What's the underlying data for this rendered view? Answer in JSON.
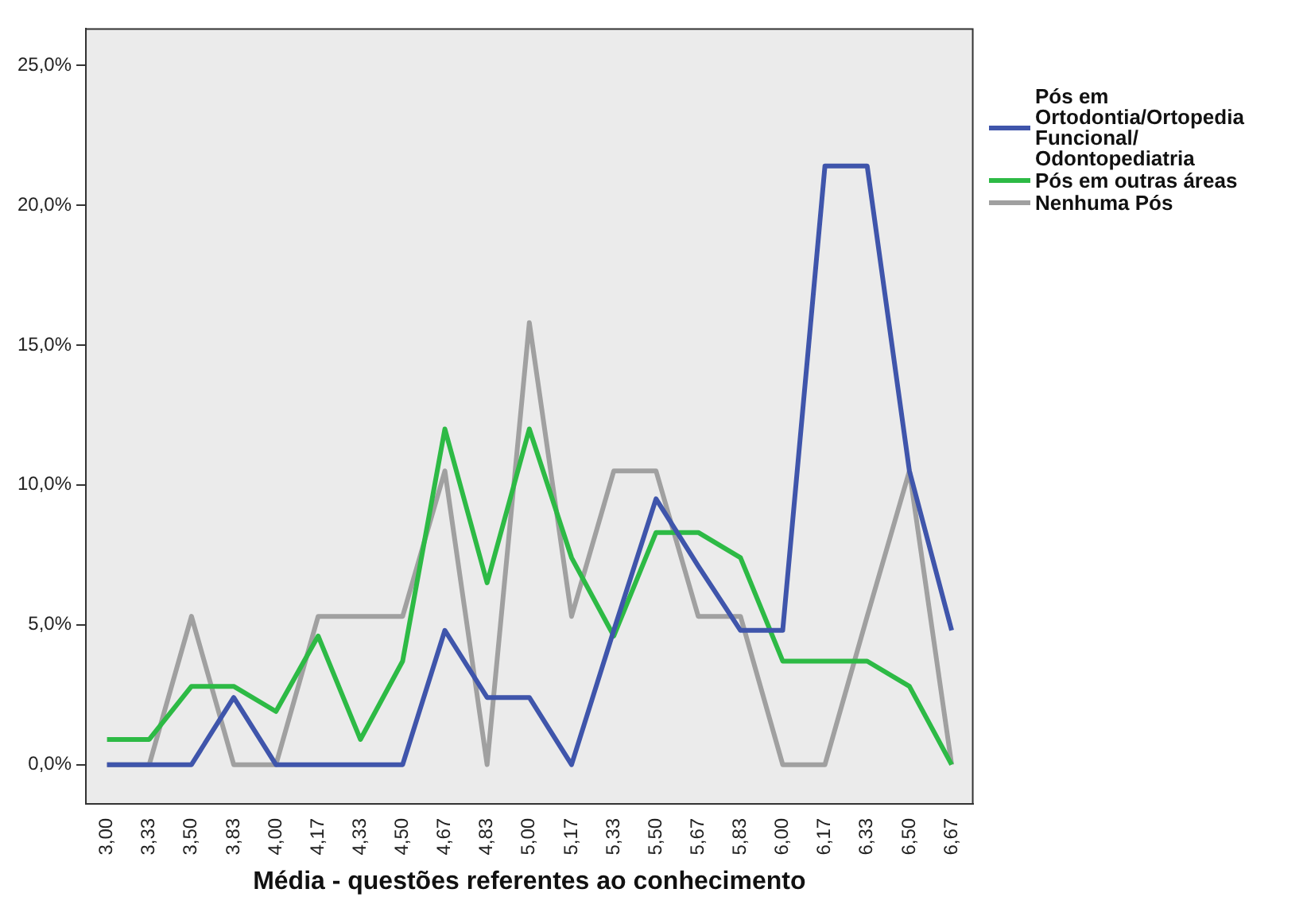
{
  "chart_data": {
    "type": "line",
    "xlabel": "Média - questões referentes ao conhecimento",
    "categories": [
      "3,00",
      "3,33",
      "3,50",
      "3,83",
      "4,00",
      "4,17",
      "4,33",
      "4,50",
      "4,67",
      "4,83",
      "5,00",
      "5,17",
      "5,33",
      "5,50",
      "5,67",
      "5,83",
      "6,00",
      "6,17",
      "6,33",
      "6,50",
      "6,67"
    ],
    "series": [
      {
        "name": "Pós em Ortodontia/Ortopedia Funcional/ Odontopediatria",
        "color": "#3f55ab",
        "values": [
          0,
          0,
          0,
          2.4,
          0,
          0,
          0,
          0,
          4.8,
          2.4,
          2.4,
          0,
          4.8,
          9.5,
          7.1,
          4.8,
          4.8,
          21.4,
          21.4,
          10.5,
          4.8
        ]
      },
      {
        "name": "Pós em outras áreas",
        "color": "#2dba45",
        "values": [
          0.9,
          0.9,
          2.8,
          2.8,
          1.9,
          4.6,
          0.9,
          3.7,
          12.0,
          6.5,
          12.0,
          7.4,
          4.6,
          8.3,
          8.3,
          7.4,
          3.7,
          3.7,
          3.7,
          2.8,
          0
        ]
      },
      {
        "name": "Nenhuma Pós",
        "color": "#a0a0a0",
        "values": [
          0,
          0,
          5.3,
          0,
          0,
          5.3,
          5.3,
          5.3,
          10.5,
          0,
          15.8,
          5.3,
          10.5,
          10.5,
          5.3,
          5.3,
          0,
          0,
          5.3,
          10.5,
          0
        ]
      }
    ],
    "ylim": [
      -1.4,
      26.3
    ],
    "yticks": [
      {
        "value": 0,
        "label": "0,0%"
      },
      {
        "value": 5,
        "label": "5,0%"
      },
      {
        "value": 10,
        "label": "10,0%"
      },
      {
        "value": 15,
        "label": "15,0%"
      },
      {
        "value": 20,
        "label": "20,0%"
      },
      {
        "value": 25,
        "label": "25,0%"
      }
    ],
    "grid": false,
    "legend": "right",
    "marker": "none",
    "line_style": "solid"
  }
}
